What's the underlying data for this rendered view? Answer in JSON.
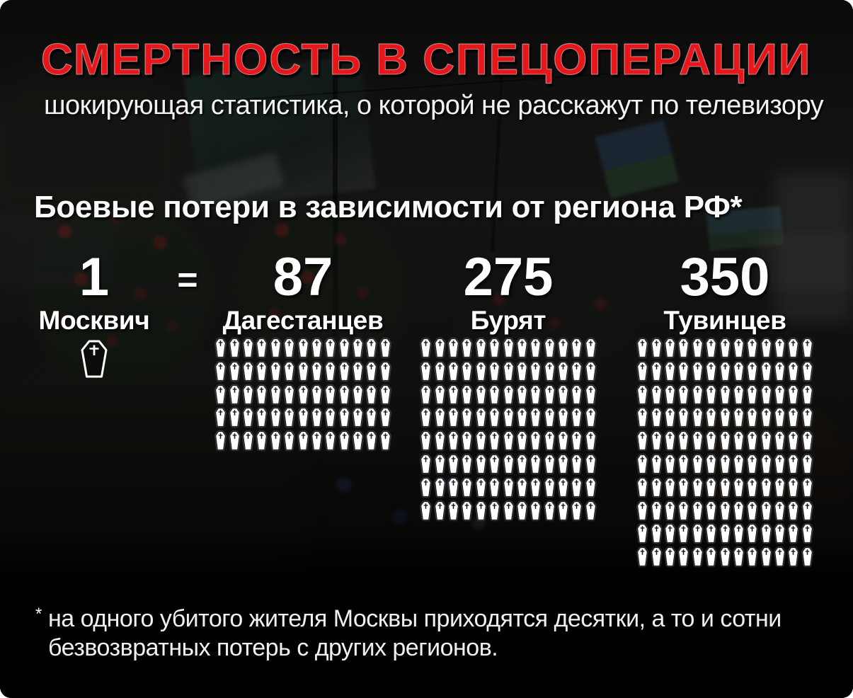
{
  "title": "СМЕРТНОСТЬ В СПЕЦОПЕРАЦИИ",
  "subtitle": "шокирующая статистика, о которой не расскажут по телевизору",
  "equals_sign": "=",
  "footnote": {
    "marker": "*",
    "line1": "на одного убитого жителя Москвы приходятся десятки, а то и сотни",
    "line2": "безвозвратных потерь с других регионов."
  },
  "colors": {
    "title_red": "#e5171b",
    "text_white": "#f2f2f2",
    "footer_background": "#000000",
    "icon_white": "#ffffff"
  },
  "chart_data": {
    "type": "pictogram",
    "title": "Боевые потери в зависимости от региона РФ*",
    "subtitle": "шокирующая статистика, о которой не расскажут по телевизору",
    "unit_icon": "coffin-icon",
    "equivalence": "1 Москвич = 87 Дагестанцев = 275 Бурят = 350 Тувинцев",
    "categories": [
      "Москвич",
      "Дагестанцев",
      "Бурят",
      "Тувинцев"
    ],
    "values": [
      1,
      87,
      275,
      350
    ],
    "regions": [
      {
        "label": "Москвич",
        "value": 1,
        "icon_style": "outline",
        "icon_rows": 1,
        "icons_per_row": 1
      },
      {
        "label": "Дагестанцев",
        "value": 87,
        "icon_style": "filled",
        "icon_rows": 5,
        "icons_per_row": 13
      },
      {
        "label": "Бурят",
        "value": 275,
        "icon_style": "filled",
        "icon_rows": 8,
        "icons_per_row": 13
      },
      {
        "label": "Тувинцев",
        "value": 350,
        "icon_style": "filled",
        "icon_rows": 10,
        "icons_per_row": 13
      }
    ],
    "legend_position": "none",
    "grid": false
  }
}
